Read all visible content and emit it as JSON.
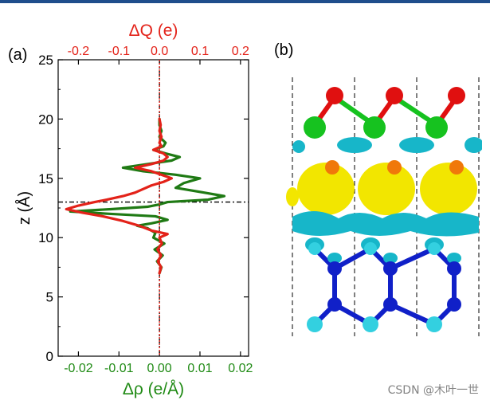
{
  "panel_a_label": "(a)",
  "panel_b_label": "(b)",
  "watermark": "CSDN @木叶一世",
  "colors": {
    "top_bar": "#1f4e8c",
    "charge_line": "#e32219",
    "density_line": "#1f7a14",
    "top_axis": "#e32219",
    "bottom_axis": "#1f8a14",
    "boundary_line": "#000000",
    "yellow_iso": "#f2e600",
    "cyan_iso": "#17b6c9",
    "atom_red": "#e01010",
    "atom_green": "#16c21f",
    "atom_orange": "#f0780a",
    "atom_blue": "#1020c8",
    "atom_cyan": "#33d0e0"
  },
  "chart_data": {
    "type": "line",
    "ylabel": "z (Å)",
    "ylim": [
      0,
      25
    ],
    "yticks": [
      0,
      5,
      10,
      15,
      20,
      25
    ],
    "x_bottom": {
      "label": "Δρ (e/Å)",
      "lim": [
        -0.025,
        0.022
      ],
      "ticks": [
        -0.02,
        -0.01,
        0.0,
        0.01,
        0.02
      ],
      "tick_labels": [
        "-0.02",
        "-0.01",
        "0.00",
        "0.01",
        "0.02"
      ]
    },
    "x_top": {
      "label": "ΔQ (e)",
      "lim": [
        -0.25,
        0.22
      ],
      "ticks": [
        -0.2,
        -0.1,
        0.0,
        0.1,
        0.2
      ],
      "tick_labels": [
        "-0.2",
        "-0.1",
        "0.0",
        "0.1",
        "0.2"
      ]
    },
    "grid": false,
    "interface_z": 13.0,
    "series": [
      {
        "axis": "bottom",
        "values_z": [
          7.0,
          7.5,
          8.0,
          8.5,
          9.0,
          9.5,
          10.0,
          10.4,
          10.8,
          11.0,
          11.2,
          11.5,
          11.8,
          12.0,
          12.2,
          12.4,
          12.6,
          12.8,
          13.0,
          13.2,
          13.5,
          13.8,
          14.2,
          14.6,
          15.0,
          15.3,
          15.6,
          15.9,
          16.2,
          16.5,
          16.8,
          17.1,
          17.4,
          17.7,
          18.0,
          18.5,
          19.0,
          19.5,
          20.0
        ],
        "values_x": [
          0.0,
          0.0005,
          -0.0006,
          0.0008,
          -0.0012,
          0.0012,
          -0.0015,
          -0.001,
          -0.003,
          -0.0055,
          -0.002,
          0.002,
          -0.001,
          -0.012,
          -0.022,
          -0.012,
          -0.003,
          0.0,
          0.002,
          0.012,
          0.016,
          0.011,
          0.004,
          0.006,
          0.01,
          0.004,
          -0.004,
          -0.009,
          -0.003,
          0.003,
          0.005,
          0.0015,
          -0.0015,
          0.001,
          0.0015,
          0.0,
          0.0005,
          0.0,
          0.0
        ]
      },
      {
        "axis": "top",
        "values_z": [
          7.0,
          7.5,
          8.0,
          8.5,
          9.0,
          9.5,
          10.0,
          10.3,
          10.6,
          11.0,
          11.4,
          11.8,
          12.1,
          12.4,
          12.7,
          13.0,
          13.2,
          13.5,
          13.8,
          14.1,
          14.4,
          14.7,
          15.0,
          15.3,
          15.6,
          15.9,
          16.2,
          16.5,
          16.8,
          17.1,
          17.4,
          17.7,
          18.0,
          18.5,
          19.0,
          19.5,
          20.0
        ],
        "values_x": [
          0.0,
          0.004,
          -0.004,
          0.004,
          -0.005,
          0.006,
          0.0,
          0.02,
          -0.02,
          -0.05,
          -0.09,
          -0.14,
          -0.19,
          -0.23,
          -0.2,
          -0.16,
          -0.13,
          -0.09,
          -0.06,
          -0.04,
          -0.02,
          0.01,
          0.03,
          0.005,
          -0.02,
          -0.06,
          -0.02,
          0.01,
          0.02,
          0.01,
          -0.015,
          0.005,
          0.0,
          0.005,
          0.0,
          0.003,
          0.0
        ]
      }
    ]
  }
}
